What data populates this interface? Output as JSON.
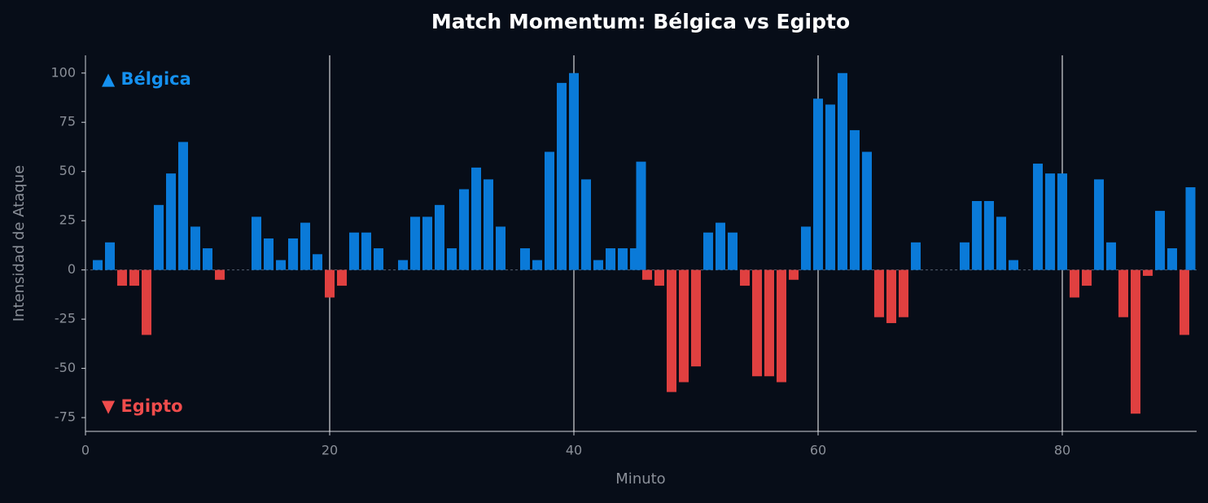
{
  "chart_data": {
    "type": "bar",
    "title": "Match Momentum: Bélgica vs Egipto",
    "x_label": "Minuto",
    "y_label": "Intensidad de Ataque",
    "annotations": [
      {
        "text": "▲ Bélgica",
        "color": "#1591f0"
      },
      {
        "text": "▼ Egipto",
        "color": "#f04c4c"
      }
    ],
    "positive_color": "#0a7ad8",
    "negative_color": "#e04040",
    "x": [
      1,
      2,
      3,
      4,
      5,
      6,
      7,
      8,
      9,
      10,
      11,
      14,
      15,
      16,
      17,
      18,
      19,
      20,
      21,
      22,
      23,
      24,
      26,
      27,
      28,
      29,
      30,
      31,
      32,
      33,
      34,
      36,
      37,
      38,
      39,
      40,
      41,
      42,
      43,
      44,
      45,
      45.5,
      46,
      47,
      48,
      49,
      50,
      51,
      52,
      53,
      54,
      55,
      56,
      57,
      58,
      59,
      60,
      61,
      62,
      63,
      64,
      65,
      66,
      67,
      68,
      72,
      73,
      74,
      75,
      76,
      78,
      79,
      80,
      81,
      82,
      83,
      84,
      85,
      86,
      87,
      88,
      89,
      90,
      90.5
    ],
    "values": [
      5,
      14,
      -8,
      -8,
      -33,
      33,
      49,
      65,
      22,
      11,
      -5,
      27,
      16,
      5,
      16,
      24,
      8,
      -14,
      -8,
      19,
      19,
      11,
      5,
      27,
      27,
      33,
      11,
      41,
      52,
      46,
      22,
      11,
      5,
      60,
      95,
      100,
      46,
      5,
      11,
      11,
      11,
      55,
      -5,
      -8,
      -62,
      -57,
      -49,
      19,
      24,
      19,
      -8,
      -54,
      -54,
      -57,
      -5,
      22,
      87,
      84,
      100,
      71,
      60,
      -24,
      -27,
      -24,
      14,
      14,
      35,
      35,
      27,
      5,
      54,
      49,
      49,
      -14,
      -8,
      46,
      14,
      -24,
      -73,
      -3,
      30,
      11,
      -33,
      42
    ],
    "xlim": [
      0,
      91
    ],
    "ylim": [
      -82,
      109
    ],
    "xticks": [
      0,
      20,
      40,
      60,
      80
    ],
    "yticks": [
      -75,
      -50,
      -25,
      0,
      25,
      50,
      75,
      100
    ],
    "xgrid": true
  }
}
